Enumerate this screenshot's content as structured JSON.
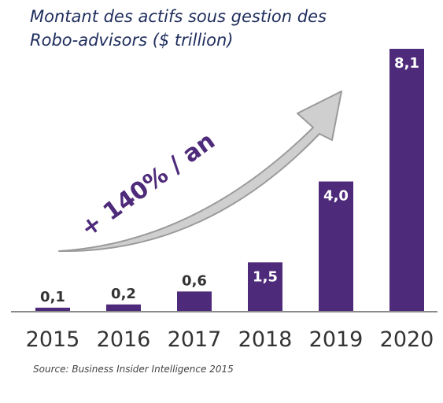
{
  "header": {
    "title_line1": "Montant des actifs sous gestion des",
    "title_line2": "Robo-advisors  ($ trillion)"
  },
  "annotation": {
    "growth_label": "+ 140% / an"
  },
  "footer": {
    "source": "Source: Business Insider Intelligence 2015"
  },
  "colors": {
    "bar": "#4e2a7a",
    "arrow_fill": "#cfcfcf",
    "arrow_stroke": "#9a9a9a",
    "axis": "#8a8a8a",
    "title": "#1e2d5c",
    "growth_label": "#4e2a7a"
  },
  "chart_data": {
    "type": "bar",
    "categories": [
      "2015",
      "2016",
      "2017",
      "2018",
      "2019",
      "2020"
    ],
    "values": [
      0.1,
      0.2,
      0.6,
      1.5,
      4.0,
      8.1
    ],
    "value_labels": [
      "0,1",
      "0,2",
      "0,6",
      "1,5",
      "4,0",
      "8,1"
    ],
    "label_inside": [
      false,
      false,
      false,
      true,
      true,
      true
    ],
    "title": "Montant des actifs sous gestion des Robo-advisors  ($ trillion)",
    "xlabel": "",
    "ylabel": "",
    "ylim": [
      0,
      8.1
    ],
    "grid": false,
    "legend": "none"
  }
}
